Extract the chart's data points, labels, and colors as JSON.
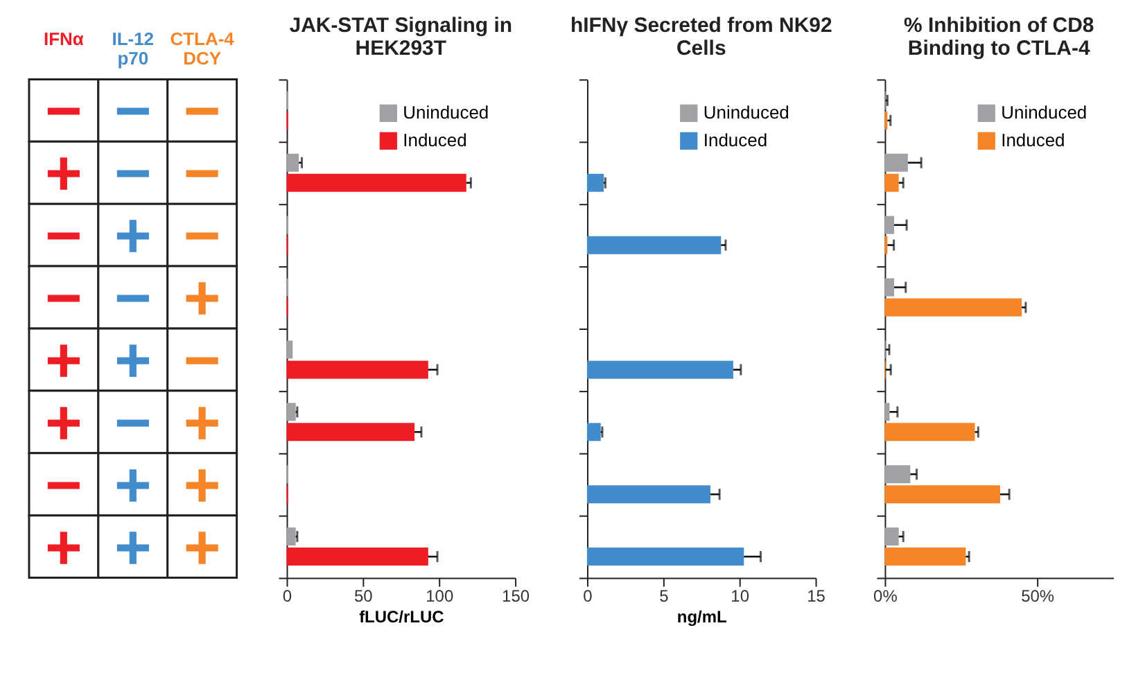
{
  "chart_data": [
    {
      "type": "other",
      "categories": [
        "IFNα",
        "IL-12 p70",
        "CTLA-4 DCY"
      ],
      "colors": [
        "#ee1c25",
        "#438ccb",
        "#f58426"
      ],
      "cell_labels": [
        [
          "−",
          "−",
          "−"
        ],
        [
          "+",
          "−",
          "−"
        ],
        [
          "−",
          "+",
          "−"
        ],
        [
          "−",
          "−",
          "+"
        ],
        [
          "+",
          "+",
          "−"
        ],
        [
          "+",
          "−",
          "+"
        ],
        [
          "−",
          "+",
          "+"
        ],
        [
          "+",
          "+",
          "+"
        ]
      ]
    },
    {
      "type": "bar",
      "orientation": "horizontal",
      "title": "JAK-STAT Signaling in HEK293T",
      "xlabel": "fLUC/rLUC",
      "categories": [
        null,
        null,
        null,
        null,
        null,
        null,
        null,
        null
      ],
      "xlim": [
        0,
        150
      ],
      "xticks": [
        0,
        50,
        100,
        150
      ],
      "tick_labels": "x",
      "legend": "top right",
      "grid": false,
      "series": [
        {
          "name": "Uninduced",
          "color": "#a0a1a4",
          "values": [
            1,
            8,
            1,
            1,
            4,
            6,
            1,
            6
          ],
          "errors": [
            null,
            [
              8,
              10
            ],
            null,
            null,
            null,
            [
              6,
              7
            ],
            null,
            [
              6,
              7
            ]
          ]
        },
        {
          "name": "Induced",
          "color": "#ee1c25",
          "values": [
            1,
            118,
            1,
            1,
            93,
            84,
            1,
            93
          ],
          "errors": [
            null,
            [
              118,
              121
            ],
            null,
            null,
            [
              93,
              99
            ],
            [
              84,
              88.5
            ],
            null,
            [
              93,
              99
            ]
          ]
        }
      ]
    },
    {
      "type": "bar",
      "orientation": "horizontal",
      "title": "hIFNγ Secreted from NK92 Cells",
      "xlabel": "ng/mL",
      "categories": [
        null,
        null,
        null,
        null,
        null,
        null,
        null,
        null
      ],
      "xlim": [
        0,
        15
      ],
      "xticks": [
        0,
        5,
        10,
        15
      ],
      "tick_labels": "x",
      "legend": "top right",
      "grid": false,
      "series": [
        {
          "name": "Uninduced",
          "color": "#a0a1a4",
          "values": [
            null,
            null,
            null,
            null,
            null,
            null,
            null,
            null
          ]
        },
        {
          "name": "Induced",
          "color": "#438ccb",
          "values": [
            0,
            1.1,
            8.8,
            0,
            9.6,
            0.9,
            8.1,
            10.3
          ],
          "errors": [
            null,
            [
              1.1,
              1.2
            ],
            [
              8.8,
              9.1
            ],
            null,
            [
              9.6,
              10.1
            ],
            [
              0.9,
              1.0
            ],
            [
              8.1,
              8.7
            ],
            [
              10.3,
              11.4
            ]
          ]
        }
      ]
    },
    {
      "type": "bar",
      "orientation": "horizontal",
      "title": "% Inhibition of CD8 Binding to CTLA-4",
      "categories": [
        null,
        null,
        null,
        null,
        null,
        null,
        null,
        null
      ],
      "xlim": [
        0,
        75
      ],
      "xticks": [
        {
          "value": 0,
          "label": "0%"
        },
        {
          "value": 50,
          "label": "50%"
        }
      ],
      "tick_labels": "x",
      "legend": "top right",
      "grid": false,
      "series": [
        {
          "name": "Uninduced",
          "color": "#a0a1a4",
          "values": [
            0.3,
            7.6,
            3.1,
            3.1,
            0.3,
            1.6,
            8.4,
            4.6
          ],
          "errors": [
            [
              0.3,
              0.9
            ],
            [
              7.6,
              12
            ],
            [
              3.1,
              7.2
            ],
            [
              3.1,
              6.9
            ],
            [
              0.3,
              1.5
            ],
            [
              1.6,
              4.2
            ],
            [
              8.4,
              10.5
            ],
            [
              4.6,
              6.1
            ]
          ]
        },
        {
          "name": "Induced",
          "color": "#f58426",
          "values": [
            0.9,
            4.6,
            0.9,
            45,
            0.3,
            29.6,
            37.9,
            26.6
          ],
          "errors": [
            [
              0.9,
              1.9
            ],
            [
              4.6,
              6.1
            ],
            [
              0.9,
              3
            ],
            [
              45,
              46.3
            ],
            [
              0.3,
              2
            ],
            [
              29.6,
              30.7
            ],
            [
              37.9,
              40.9
            ],
            [
              26.6,
              27.7
            ]
          ]
        }
      ]
    }
  ]
}
